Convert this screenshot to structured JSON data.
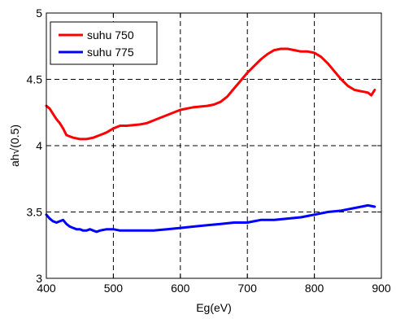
{
  "chart_data": {
    "type": "line",
    "title": "",
    "xlabel": "Eg(eV)",
    "ylabel": "ah√(0.5)",
    "xlim": [
      400,
      900
    ],
    "ylim": [
      3,
      5
    ],
    "xticks": [
      "400",
      "500",
      "600",
      "700",
      "800",
      "900"
    ],
    "yticks": [
      "3",
      "3.5",
      "4",
      "4.5",
      "5"
    ],
    "grid": true,
    "grid_style": "dashed",
    "legend_position": "top-left",
    "series": [
      {
        "name": "suhu 750",
        "color": "#ff0000",
        "x": [
          400,
          405,
          410,
          415,
          420,
          425,
          430,
          435,
          440,
          450,
          460,
          470,
          480,
          490,
          500,
          510,
          520,
          540,
          550,
          560,
          580,
          600,
          620,
          640,
          650,
          660,
          670,
          680,
          690,
          700,
          710,
          720,
          730,
          740,
          750,
          760,
          770,
          780,
          790,
          800,
          810,
          820,
          830,
          840,
          850,
          860,
          870,
          880,
          885,
          890
        ],
        "y": [
          4.3,
          4.28,
          4.24,
          4.2,
          4.17,
          4.13,
          4.08,
          4.07,
          4.06,
          4.05,
          4.05,
          4.06,
          4.08,
          4.1,
          4.13,
          4.15,
          4.15,
          4.16,
          4.17,
          4.19,
          4.23,
          4.27,
          4.29,
          4.3,
          4.31,
          4.33,
          4.37,
          4.43,
          4.49,
          4.55,
          4.6,
          4.65,
          4.69,
          4.72,
          4.73,
          4.73,
          4.72,
          4.71,
          4.71,
          4.7,
          4.67,
          4.62,
          4.56,
          4.5,
          4.45,
          4.42,
          4.41,
          4.4,
          4.38,
          4.42
        ]
      },
      {
        "name": "suhu 775",
        "color": "#0000ff",
        "x": [
          400,
          405,
          410,
          415,
          420,
          425,
          430,
          435,
          440,
          445,
          450,
          455,
          460,
          465,
          470,
          475,
          480,
          490,
          500,
          510,
          520,
          540,
          560,
          580,
          600,
          620,
          640,
          660,
          680,
          700,
          710,
          720,
          740,
          760,
          780,
          800,
          820,
          840,
          850,
          860,
          870,
          880,
          890
        ],
        "y": [
          3.48,
          3.45,
          3.43,
          3.42,
          3.43,
          3.44,
          3.41,
          3.39,
          3.38,
          3.37,
          3.37,
          3.36,
          3.36,
          3.37,
          3.36,
          3.35,
          3.36,
          3.37,
          3.37,
          3.36,
          3.36,
          3.36,
          3.36,
          3.37,
          3.38,
          3.39,
          3.4,
          3.41,
          3.42,
          3.42,
          3.43,
          3.44,
          3.44,
          3.45,
          3.46,
          3.48,
          3.5,
          3.51,
          3.52,
          3.53,
          3.54,
          3.55,
          3.54
        ]
      }
    ]
  }
}
